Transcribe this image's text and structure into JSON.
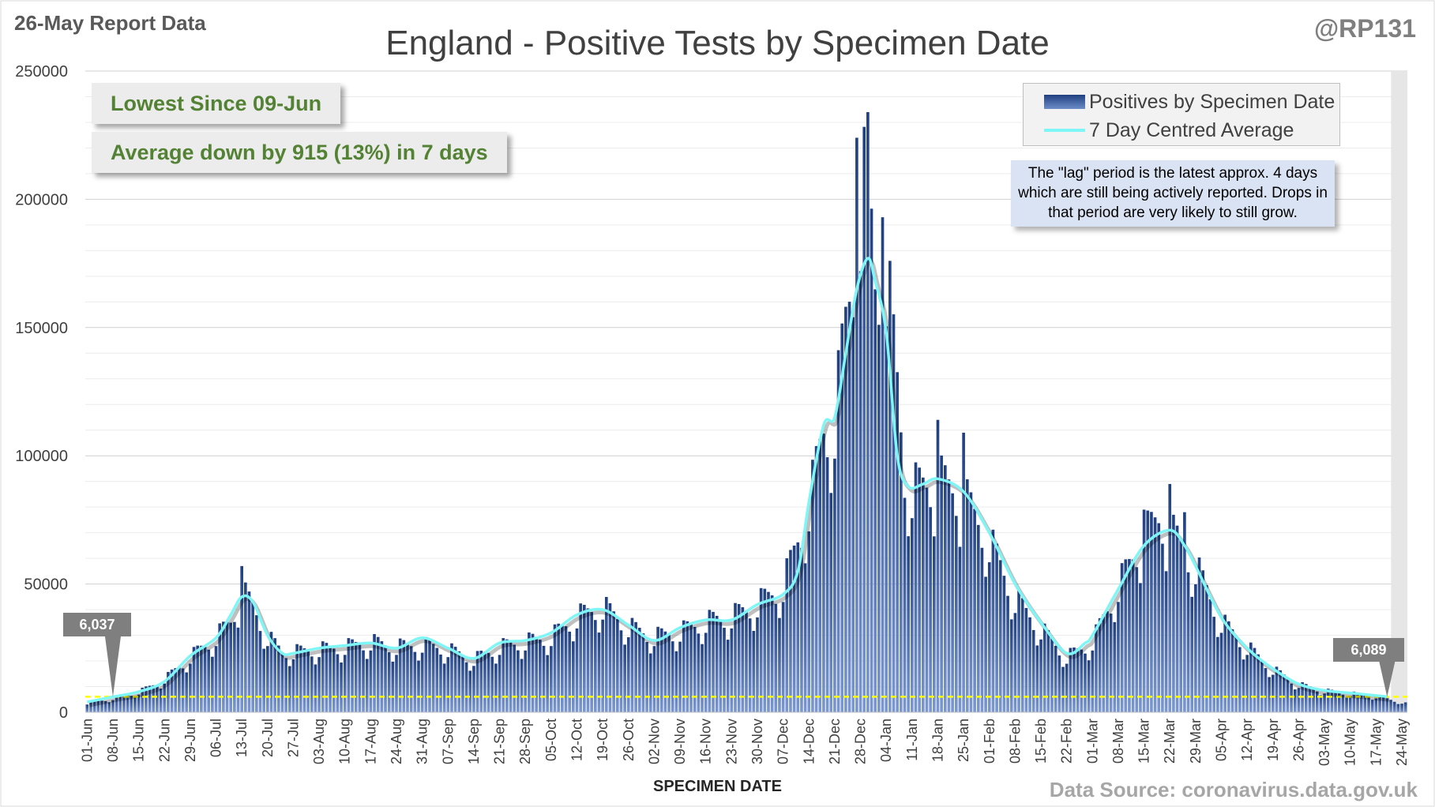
{
  "header": {
    "report_label": "26-May Report Data",
    "handle": "@RP131",
    "title": "England - Positive Tests by Specimen Date"
  },
  "callouts": {
    "lowest": "Lowest Since 09-Jun",
    "average": "Average down by 915 (13%) in 7 days"
  },
  "legend": {
    "bars_label": "Positives by Specimen Date",
    "line_label": "7 Day Centred Average"
  },
  "lag_note": "The \"lag\" period is the latest approx. 4 days which are still being actively reported. Drops in that period are very likely to still grow.",
  "markers": {
    "start_label": "6,037",
    "end_label": "6,089"
  },
  "footer": {
    "xaxis_title": "SPECIMEN DATE",
    "source": "Data Source: coronavirus.data.gov.uk"
  },
  "colors": {
    "bar_dark": "#1f3f7f",
    "bar_light": "#7b98d0",
    "average_line": "#7ff6f6",
    "reference_line": "#ffff00",
    "callout_text": "#548235",
    "lag_shade": "#e6e6e6"
  },
  "chart_data": {
    "type": "bar",
    "title": "England - Positive Tests by Specimen Date",
    "xlabel": "SPECIMEN DATE",
    "ylabel": "",
    "ylim": [
      0,
      250000
    ],
    "yticks": [
      0,
      50000,
      100000,
      150000,
      200000,
      250000
    ],
    "ytick_labels": [
      "0",
      "50000",
      "100000",
      "150000",
      "200000",
      "250000"
    ],
    "x_start_date": "2020-06-01",
    "x_end_date": "2021-05-25",
    "xtick_labels": [
      "01-Jun",
      "08-Jun",
      "15-Jun",
      "22-Jun",
      "29-Jun",
      "06-Jul",
      "13-Jul",
      "20-Jul",
      "27-Jul",
      "03-Aug",
      "10-Aug",
      "17-Aug",
      "24-Aug",
      "31-Aug",
      "07-Sep",
      "14-Sep",
      "21-Sep",
      "28-Sep",
      "05-Oct",
      "12-Oct",
      "19-Oct",
      "26-Oct",
      "02-Nov",
      "09-Nov",
      "16-Nov",
      "23-Nov",
      "30-Nov",
      "07-Dec",
      "14-Dec",
      "21-Dec",
      "28-Dec",
      "04-Jan",
      "11-Jan",
      "18-Jan",
      "25-Jan",
      "01-Feb",
      "08-Feb",
      "15-Feb",
      "22-Feb",
      "01-Mar",
      "08-Mar",
      "15-Mar",
      "22-Mar",
      "29-Mar",
      "05-Apr",
      "12-Apr",
      "19-Apr",
      "26-Apr",
      "03-May",
      "10-May",
      "17-May",
      "24-May"
    ],
    "grid": true,
    "legend_position": "top-right",
    "reference_line_value": 6037,
    "lag_days": 4,
    "series": [
      {
        "name": "Positives by Specimen Date",
        "type": "bar",
        "anchors": [
          [
            "01-Jun",
            3500
          ],
          [
            "08-Jun",
            5500
          ],
          [
            "15-Jun",
            8000
          ],
          [
            "22-Jun",
            13000
          ],
          [
            "29-Jun",
            22000
          ],
          [
            "06-Jul",
            30000
          ],
          [
            "10-Jul",
            36000
          ],
          [
            "13-Jul",
            48000
          ],
          [
            "16-Jul",
            42000
          ],
          [
            "20-Jul",
            30000
          ],
          [
            "24-Jul",
            24000
          ],
          [
            "27-Jul",
            24000
          ],
          [
            "03-Aug",
            25000
          ],
          [
            "10-Aug",
            26000
          ],
          [
            "17-Aug",
            28000
          ],
          [
            "24-Aug",
            26000
          ],
          [
            "31-Aug",
            27000
          ],
          [
            "07-Sep",
            25000
          ],
          [
            "14-Sep",
            21000
          ],
          [
            "21-Sep",
            26000
          ],
          [
            "28-Sep",
            28000
          ],
          [
            "05-Oct",
            30000
          ],
          [
            "12-Oct",
            38000
          ],
          [
            "19-Oct",
            42000
          ],
          [
            "26-Oct",
            34000
          ],
          [
            "02-Nov",
            30000
          ],
          [
            "09-Nov",
            32000
          ],
          [
            "16-Nov",
            36000
          ],
          [
            "23-Nov",
            38000
          ],
          [
            "30-Nov",
            43000
          ],
          [
            "07-Dec",
            50000
          ],
          [
            "14-Dec",
            82000
          ],
          [
            "18-Dec",
            112000
          ],
          [
            "21-Dec",
            115000
          ],
          [
            "24-Dec",
            155000
          ],
          [
            "27-Dec",
            185000
          ],
          [
            "28-Dec",
            200000
          ],
          [
            "30-Dec",
            215000
          ],
          [
            "01-Jan",
            170000
          ],
          [
            "04-Jan",
            175000
          ],
          [
            "07-Jan",
            130000
          ],
          [
            "09-Jan",
            95000
          ],
          [
            "11-Jan",
            88000
          ],
          [
            "18-Jan",
            92000
          ],
          [
            "25-Jan",
            85000
          ],
          [
            "01-Feb",
            68000
          ],
          [
            "08-Feb",
            45000
          ],
          [
            "15-Feb",
            33000
          ],
          [
            "22-Feb",
            22000
          ],
          [
            "27-Feb",
            26000
          ],
          [
            "01-Mar",
            28000
          ],
          [
            "08-Mar",
            50000
          ],
          [
            "15-Mar",
            70000
          ],
          [
            "19-Mar",
            76000
          ],
          [
            "22-Mar",
            72000
          ],
          [
            "29-Mar",
            58000
          ],
          [
            "05-Apr",
            36000
          ],
          [
            "12-Apr",
            26000
          ],
          [
            "19-Apr",
            17000
          ],
          [
            "26-Apr",
            11000
          ],
          [
            "03-May",
            8500
          ],
          [
            "10-May",
            7500
          ],
          [
            "17-May",
            6300
          ],
          [
            "21-May",
            5000
          ],
          [
            "25-May",
            3500
          ]
        ],
        "spikes": [
          [
            "13-Jul",
            57000
          ],
          [
            "27-Dec",
            224000
          ],
          [
            "30-Dec",
            234000
          ],
          [
            "03-Jan",
            193000
          ],
          [
            "18-Jan",
            114000
          ],
          [
            "25-Jan",
            109000
          ],
          [
            "22-Mar",
            89000
          ],
          [
            "26-Mar",
            78000
          ],
          [
            "15-Mar",
            79000
          ]
        ]
      },
      {
        "name": "7 Day Centred Average",
        "type": "line",
        "points": [
          [
            "01-Jun",
            4000
          ],
          [
            "08-Jun",
            6000
          ],
          [
            "15-Jun",
            8000
          ],
          [
            "22-Jun",
            12000
          ],
          [
            "29-Jun",
            22000
          ],
          [
            "06-Jul",
            29000
          ],
          [
            "10-Jul",
            38000
          ],
          [
            "13-Jul",
            45000
          ],
          [
            "16-Jul",
            43000
          ],
          [
            "20-Jul",
            30000
          ],
          [
            "24-Jul",
            23000
          ],
          [
            "27-Jul",
            23000
          ],
          [
            "03-Aug",
            25000
          ],
          [
            "10-Aug",
            26000
          ],
          [
            "17-Aug",
            27000
          ],
          [
            "24-Aug",
            25000
          ],
          [
            "31-Aug",
            29000
          ],
          [
            "07-Sep",
            25000
          ],
          [
            "14-Sep",
            21000
          ],
          [
            "21-Sep",
            27000
          ],
          [
            "28-Sep",
            28000
          ],
          [
            "05-Oct",
            31000
          ],
          [
            "12-Oct",
            38000
          ],
          [
            "19-Oct",
            40000
          ],
          [
            "26-Oct",
            34000
          ],
          [
            "02-Nov",
            28000
          ],
          [
            "09-Nov",
            33000
          ],
          [
            "16-Nov",
            36000
          ],
          [
            "23-Nov",
            36000
          ],
          [
            "30-Nov",
            42000
          ],
          [
            "07-Dec",
            46000
          ],
          [
            "11-Dec",
            55000
          ],
          [
            "14-Dec",
            82000
          ],
          [
            "18-Dec",
            112000
          ],
          [
            "21-Dec",
            115000
          ],
          [
            "24-Dec",
            140000
          ],
          [
            "27-Dec",
            165000
          ],
          [
            "30-Dec",
            177000
          ],
          [
            "01-Jan",
            168000
          ],
          [
            "04-Jan",
            148000
          ],
          [
            "07-Jan",
            100000
          ],
          [
            "10-Jan",
            88000
          ],
          [
            "14-Jan",
            89000
          ],
          [
            "18-Jan",
            91000
          ],
          [
            "25-Jan",
            86000
          ],
          [
            "01-Feb",
            70000
          ],
          [
            "08-Feb",
            50000
          ],
          [
            "15-Feb",
            35000
          ],
          [
            "22-Feb",
            23000
          ],
          [
            "27-Feb",
            27000
          ],
          [
            "01-Mar",
            30000
          ],
          [
            "08-Mar",
            48000
          ],
          [
            "15-Mar",
            65000
          ],
          [
            "22-Mar",
            71000
          ],
          [
            "26-Mar",
            65000
          ],
          [
            "29-Mar",
            57000
          ],
          [
            "05-Apr",
            37000
          ],
          [
            "12-Apr",
            25000
          ],
          [
            "19-Apr",
            17000
          ],
          [
            "26-Apr",
            11000
          ],
          [
            "03-May",
            8500
          ],
          [
            "10-May",
            7500
          ],
          [
            "17-May",
            6500
          ],
          [
            "20-May",
            6100
          ]
        ]
      }
    ]
  }
}
